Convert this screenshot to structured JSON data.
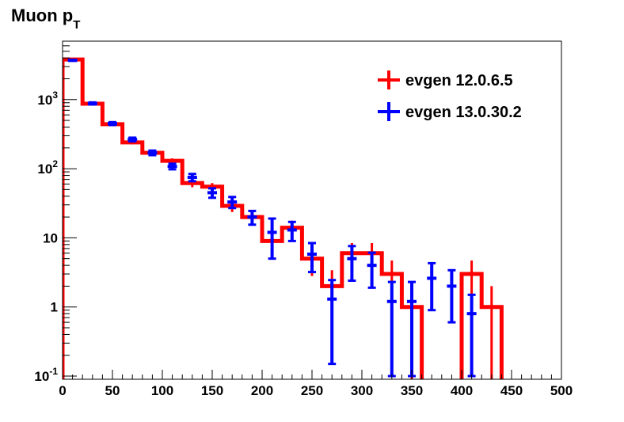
{
  "chart_data": {
    "type": "histogram",
    "title": "Muon p",
    "title_subscript": "T",
    "xlabel": "",
    "ylabel": "",
    "xlim": [
      0,
      500
    ],
    "ylim": [
      0.09,
      7000
    ],
    "yscale": "log",
    "grid": false,
    "legend_position": "top-right",
    "bin_edges": [
      0,
      20,
      40,
      60,
      80,
      100,
      120,
      140,
      160,
      180,
      200,
      220,
      240,
      260,
      280,
      300,
      320,
      340,
      360,
      380,
      400,
      420,
      440,
      460,
      480,
      500
    ],
    "x_ticks": [
      0,
      50,
      100,
      150,
      200,
      250,
      300,
      350,
      400,
      450,
      500
    ],
    "x_tick_labels": [
      "0",
      "50",
      "100",
      "150",
      "200",
      "250",
      "300",
      "350",
      "400",
      "450",
      "500"
    ],
    "y_ticks": [
      {
        "value": 0.1,
        "base": "10",
        "exp": "-1"
      },
      {
        "value": 1,
        "label": "1"
      },
      {
        "value": 10,
        "label": "10"
      },
      {
        "value": 100,
        "base": "10",
        "exp": "2"
      },
      {
        "value": 1000,
        "base": "10",
        "exp": "3"
      }
    ],
    "series": [
      {
        "name": "evgen 12.0.6.5",
        "color": "#ff0000",
        "style": "step",
        "values": [
          3800,
          870,
          440,
          240,
          170,
          130,
          62,
          55,
          29,
          20,
          9,
          14,
          5,
          2,
          6,
          6,
          3,
          1,
          0,
          0,
          3,
          1,
          0,
          0,
          0
        ],
        "errors": [
          60,
          30,
          21,
          15,
          13,
          11,
          8,
          7,
          5.4,
          4.5,
          3,
          3.7,
          2.2,
          1.4,
          2.4,
          2.4,
          1.7,
          1,
          0,
          0,
          1.7,
          1,
          0,
          0,
          0
        ]
      },
      {
        "name": "evgen 13.0.30.2",
        "color": "#0000ff",
        "style": "errorbar",
        "values": [
          3700,
          880,
          450,
          265,
          170,
          108,
          75,
          45,
          33,
          20,
          12,
          13,
          5.8,
          1.3,
          5,
          4,
          1.2,
          1.2,
          2.6,
          2,
          0.8,
          0,
          0,
          0,
          0
        ],
        "errors": [
          60,
          30,
          21,
          16,
          13,
          10,
          9,
          7,
          6,
          4.5,
          7,
          4,
          2.6,
          1.15,
          2.6,
          2.1,
          1.1,
          1.1,
          1.7,
          1.4,
          0.7,
          0,
          0,
          0,
          0
        ]
      }
    ]
  }
}
